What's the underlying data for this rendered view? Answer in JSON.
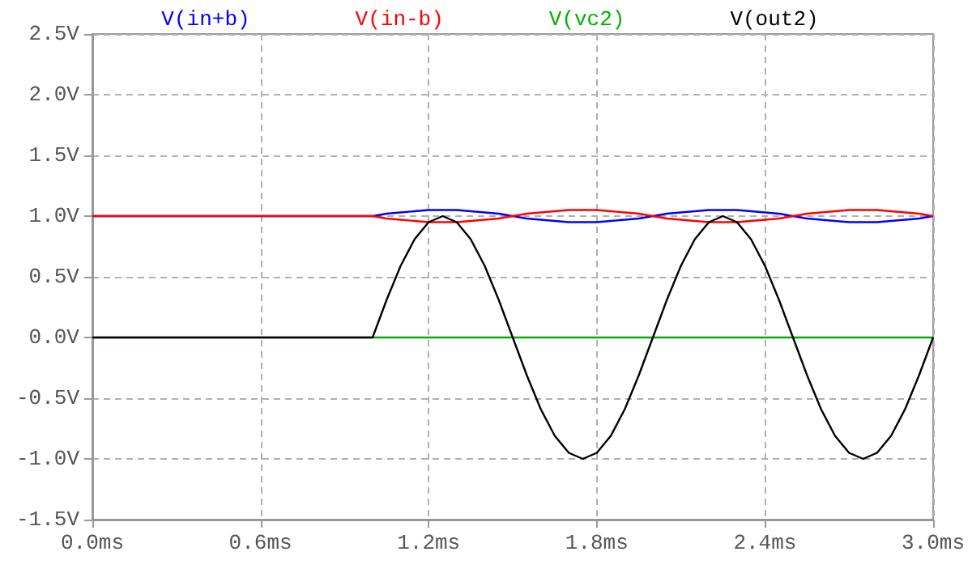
{
  "chart_data": {
    "type": "line",
    "x": [
      0,
      1.0,
      1.05,
      1.1,
      1.15,
      1.2,
      1.25,
      1.3,
      1.35,
      1.4,
      1.45,
      1.5,
      1.55,
      1.6,
      1.65,
      1.7,
      1.75,
      1.8,
      1.85,
      1.9,
      1.95,
      2.0,
      2.05,
      2.1,
      2.15,
      2.2,
      2.25,
      2.3,
      2.35,
      2.4,
      2.45,
      2.5,
      2.55,
      2.6,
      2.65,
      2.7,
      2.75,
      2.8,
      2.85,
      2.9,
      2.95,
      3.0
    ],
    "series": [
      {
        "name": "V(in+b)",
        "color": "#0000ff",
        "values": [
          1,
          1,
          1.02,
          1.03,
          1.04,
          1.05,
          1.05,
          1.05,
          1.04,
          1.03,
          1.02,
          1,
          0.98,
          0.97,
          0.96,
          0.95,
          0.95,
          0.95,
          0.96,
          0.97,
          0.98,
          1,
          1.02,
          1.03,
          1.04,
          1.05,
          1.05,
          1.05,
          1.04,
          1.03,
          1.02,
          1,
          0.98,
          0.97,
          0.96,
          0.95,
          0.95,
          0.95,
          0.96,
          0.97,
          0.98,
          1
        ]
      },
      {
        "name": "V(in-b)",
        "color": "#ff0000",
        "values": [
          1,
          1,
          0.98,
          0.97,
          0.96,
          0.95,
          0.95,
          0.95,
          0.96,
          0.97,
          0.98,
          1,
          1.02,
          1.03,
          1.04,
          1.05,
          1.05,
          1.05,
          1.04,
          1.03,
          1.02,
          1,
          0.98,
          0.97,
          0.96,
          0.95,
          0.95,
          0.95,
          0.96,
          0.97,
          0.98,
          1,
          1.02,
          1.03,
          1.04,
          1.05,
          1.05,
          1.05,
          1.04,
          1.03,
          1.02,
          1
        ]
      },
      {
        "name": "V(vc2)",
        "color": "#00b000",
        "values": [
          0,
          0,
          0,
          0,
          0,
          0,
          0,
          0,
          0,
          0,
          0,
          0,
          0,
          0,
          0,
          0,
          0,
          0,
          0,
          0,
          0,
          0,
          0,
          0,
          0,
          0,
          0,
          0,
          0,
          0,
          0,
          0,
          0,
          0,
          0,
          0,
          0,
          0,
          0,
          0,
          0,
          0
        ]
      },
      {
        "name": "V(out2)",
        "color": "#000000",
        "values": [
          0,
          0,
          0.31,
          0.59,
          0.81,
          0.95,
          1,
          0.95,
          0.81,
          0.59,
          0.31,
          0,
          -0.31,
          -0.59,
          -0.81,
          -0.95,
          -1,
          -0.95,
          -0.81,
          -0.59,
          -0.31,
          0,
          0.31,
          0.59,
          0.81,
          0.95,
          1,
          0.95,
          0.81,
          0.59,
          0.31,
          0,
          -0.31,
          -0.59,
          -0.81,
          -0.95,
          -1,
          -0.95,
          -0.81,
          -0.59,
          -0.31,
          0
        ]
      }
    ],
    "xlim": [
      0,
      3
    ],
    "xticks": [
      {
        "value": 0,
        "label": "0.0ms"
      },
      {
        "value": 0.6,
        "label": "0.6ms"
      },
      {
        "value": 1.2,
        "label": "1.2ms"
      },
      {
        "value": 1.8,
        "label": "1.8ms"
      },
      {
        "value": 2.4,
        "label": "2.4ms"
      },
      {
        "value": 3,
        "label": "3.0ms"
      }
    ],
    "ylim": [
      -1.5,
      2.5
    ],
    "yticks": [
      {
        "value": -1.5,
        "label": "-1.5V"
      },
      {
        "value": -1,
        "label": "-1.0V"
      },
      {
        "value": -0.5,
        "label": "-0.5V"
      },
      {
        "value": 0,
        "label": "0.0V"
      },
      {
        "value": 0.5,
        "label": "0.5V"
      },
      {
        "value": 1,
        "label": "1.0V"
      },
      {
        "value": 1.5,
        "label": "1.5V"
      },
      {
        "value": 2,
        "label": "2.0V"
      },
      {
        "value": 2.5,
        "label": "2.5V"
      }
    ],
    "grid": true,
    "legend": "top",
    "marker": "none",
    "line_style": "solid"
  }
}
